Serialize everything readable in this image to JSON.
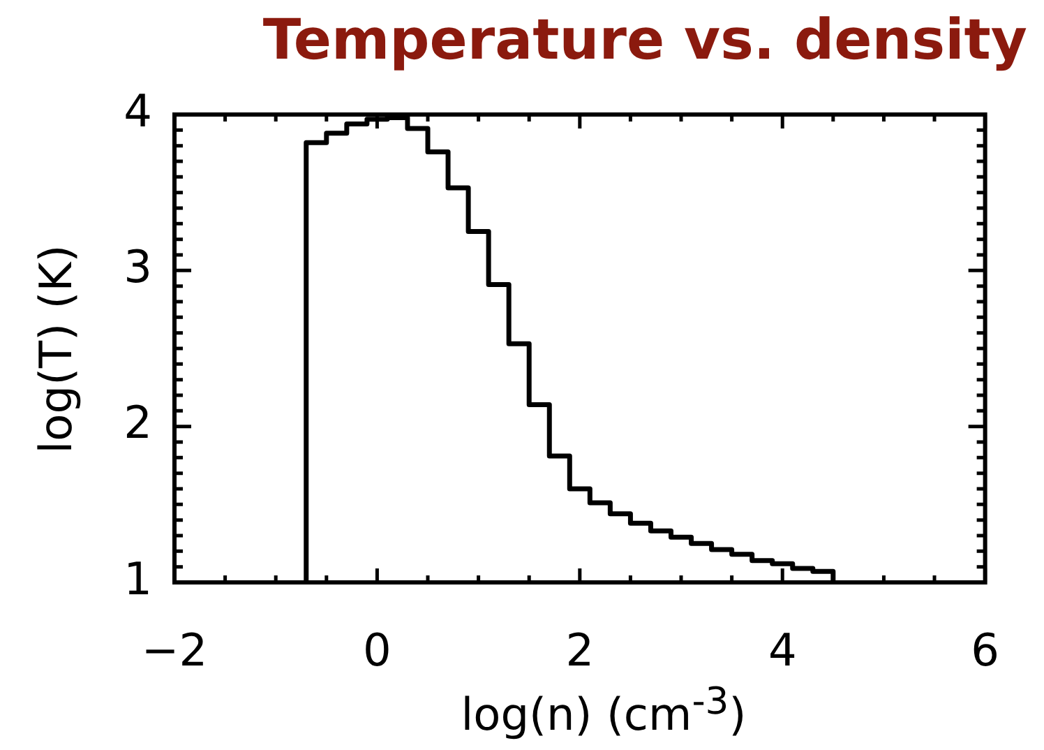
{
  "chart_data": {
    "type": "histogram",
    "title": "Temperature vs. density",
    "xlabel": "log(n)  (cm$^{-3}$)",
    "ylabel": "log(T)  (K)",
    "bins": [
      -0.7,
      -0.5,
      -0.3,
      -0.1,
      0.1,
      0.3,
      0.5,
      0.7,
      0.9,
      1.1,
      1.3,
      1.5,
      1.7,
      1.9,
      2.1,
      2.3,
      2.5,
      2.7,
      2.9,
      3.1,
      3.3,
      3.5,
      3.7,
      3.9,
      4.1,
      4.3,
      4.5
    ],
    "values": [
      3.82,
      3.88,
      3.94,
      3.97,
      3.98,
      3.91,
      3.76,
      3.53,
      3.25,
      2.91,
      2.53,
      2.14,
      1.81,
      1.6,
      1.51,
      1.44,
      1.38,
      1.33,
      1.29,
      1.25,
      1.21,
      1.18,
      1.14,
      1.12,
      1.09,
      1.07
    ],
    "color": "#000000",
    "xlim": [
      -2,
      6
    ],
    "ylim": [
      1,
      4
    ],
    "xticks": [
      {
        "value": -2,
        "label": "−2"
      },
      {
        "value": -1.5,
        "label": null
      },
      {
        "value": -1,
        "label": null
      },
      {
        "value": -0.5,
        "label": null
      },
      0,
      {
        "value": 0.5,
        "label": null
      },
      {
        "value": 1,
        "label": null
      },
      {
        "value": 1.5,
        "label": null
      },
      2,
      {
        "value": 2.5,
        "label": null
      },
      {
        "value": 3,
        "label": null
      },
      {
        "value": 3.5,
        "label": null
      },
      4,
      {
        "value": 4.5,
        "label": null
      },
      {
        "value": 5,
        "label": null
      },
      {
        "value": 5.5,
        "label": null
      },
      6
    ],
    "yticks": [
      1,
      {
        "value": 1.1,
        "label": null
      },
      {
        "value": 1.2,
        "label": null
      },
      {
        "value": 1.3,
        "label": null
      },
      {
        "value": 1.4,
        "label": null
      },
      {
        "value": 1.5,
        "label": null
      },
      {
        "value": 1.6,
        "label": null
      },
      {
        "value": 1.7,
        "label": null
      },
      {
        "value": 1.8,
        "label": null
      },
      {
        "value": 1.9,
        "label": null
      },
      2,
      {
        "value": 2.1,
        "label": null
      },
      {
        "value": 2.2,
        "label": null
      },
      {
        "value": 2.3,
        "label": null
      },
      {
        "value": 2.4,
        "label": null
      },
      {
        "value": 2.5,
        "label": null
      },
      {
        "value": 2.6,
        "label": null
      },
      {
        "value": 2.7,
        "label": null
      },
      {
        "value": 2.8,
        "label": null
      },
      {
        "value": 2.9,
        "label": null
      },
      3,
      {
        "value": 3.1,
        "label": null
      },
      {
        "value": 3.2,
        "label": null
      },
      {
        "value": 3.3,
        "label": null
      },
      {
        "value": 3.4,
        "label": null
      },
      {
        "value": 3.5,
        "label": null
      },
      {
        "value": 3.6,
        "label": null
      },
      {
        "value": 3.7,
        "label": null
      },
      {
        "value": 3.8,
        "label": null
      },
      {
        "value": 3.9,
        "label": null
      },
      4
    ],
    "grid": false,
    "legend": false
  }
}
